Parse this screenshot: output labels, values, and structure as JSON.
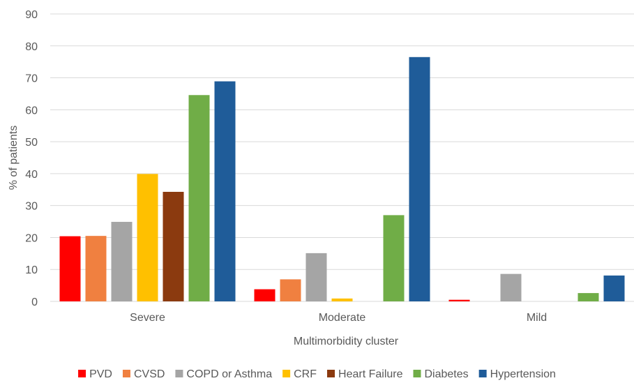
{
  "chart_data": {
    "type": "bar",
    "categories": [
      "Severe",
      "Moderate",
      "Mild"
    ],
    "xlabel": "Multimorbidity cluster",
    "ylabel": "% of patients",
    "ylim": [
      0,
      90
    ],
    "yticks": [
      0,
      10,
      20,
      30,
      40,
      50,
      60,
      70,
      80,
      90
    ],
    "grid": true,
    "legend_position": "bottom",
    "series": [
      {
        "name": "PVD",
        "color": "#ff0000",
        "values": [
          20.4,
          3.8,
          0.5
        ]
      },
      {
        "name": "CVSD",
        "color": "#f08040",
        "values": [
          20.5,
          6.9,
          0
        ]
      },
      {
        "name": "COPD or Asthma",
        "color": "#a5a5a5",
        "values": [
          24.9,
          15.1,
          8.6
        ]
      },
      {
        "name": "CRF",
        "color": "#ffc000",
        "values": [
          39.9,
          0.9,
          0
        ]
      },
      {
        "name": "Heart Failure",
        "color": "#8b3a0f",
        "values": [
          34.3,
          0,
          0
        ]
      },
      {
        "name": "Diabetes",
        "color": "#70ad47",
        "values": [
          64.6,
          27.0,
          2.6
        ]
      },
      {
        "name": "Hypertension",
        "color": "#1f5c99",
        "values": [
          68.9,
          76.5,
          8.1
        ]
      }
    ]
  }
}
